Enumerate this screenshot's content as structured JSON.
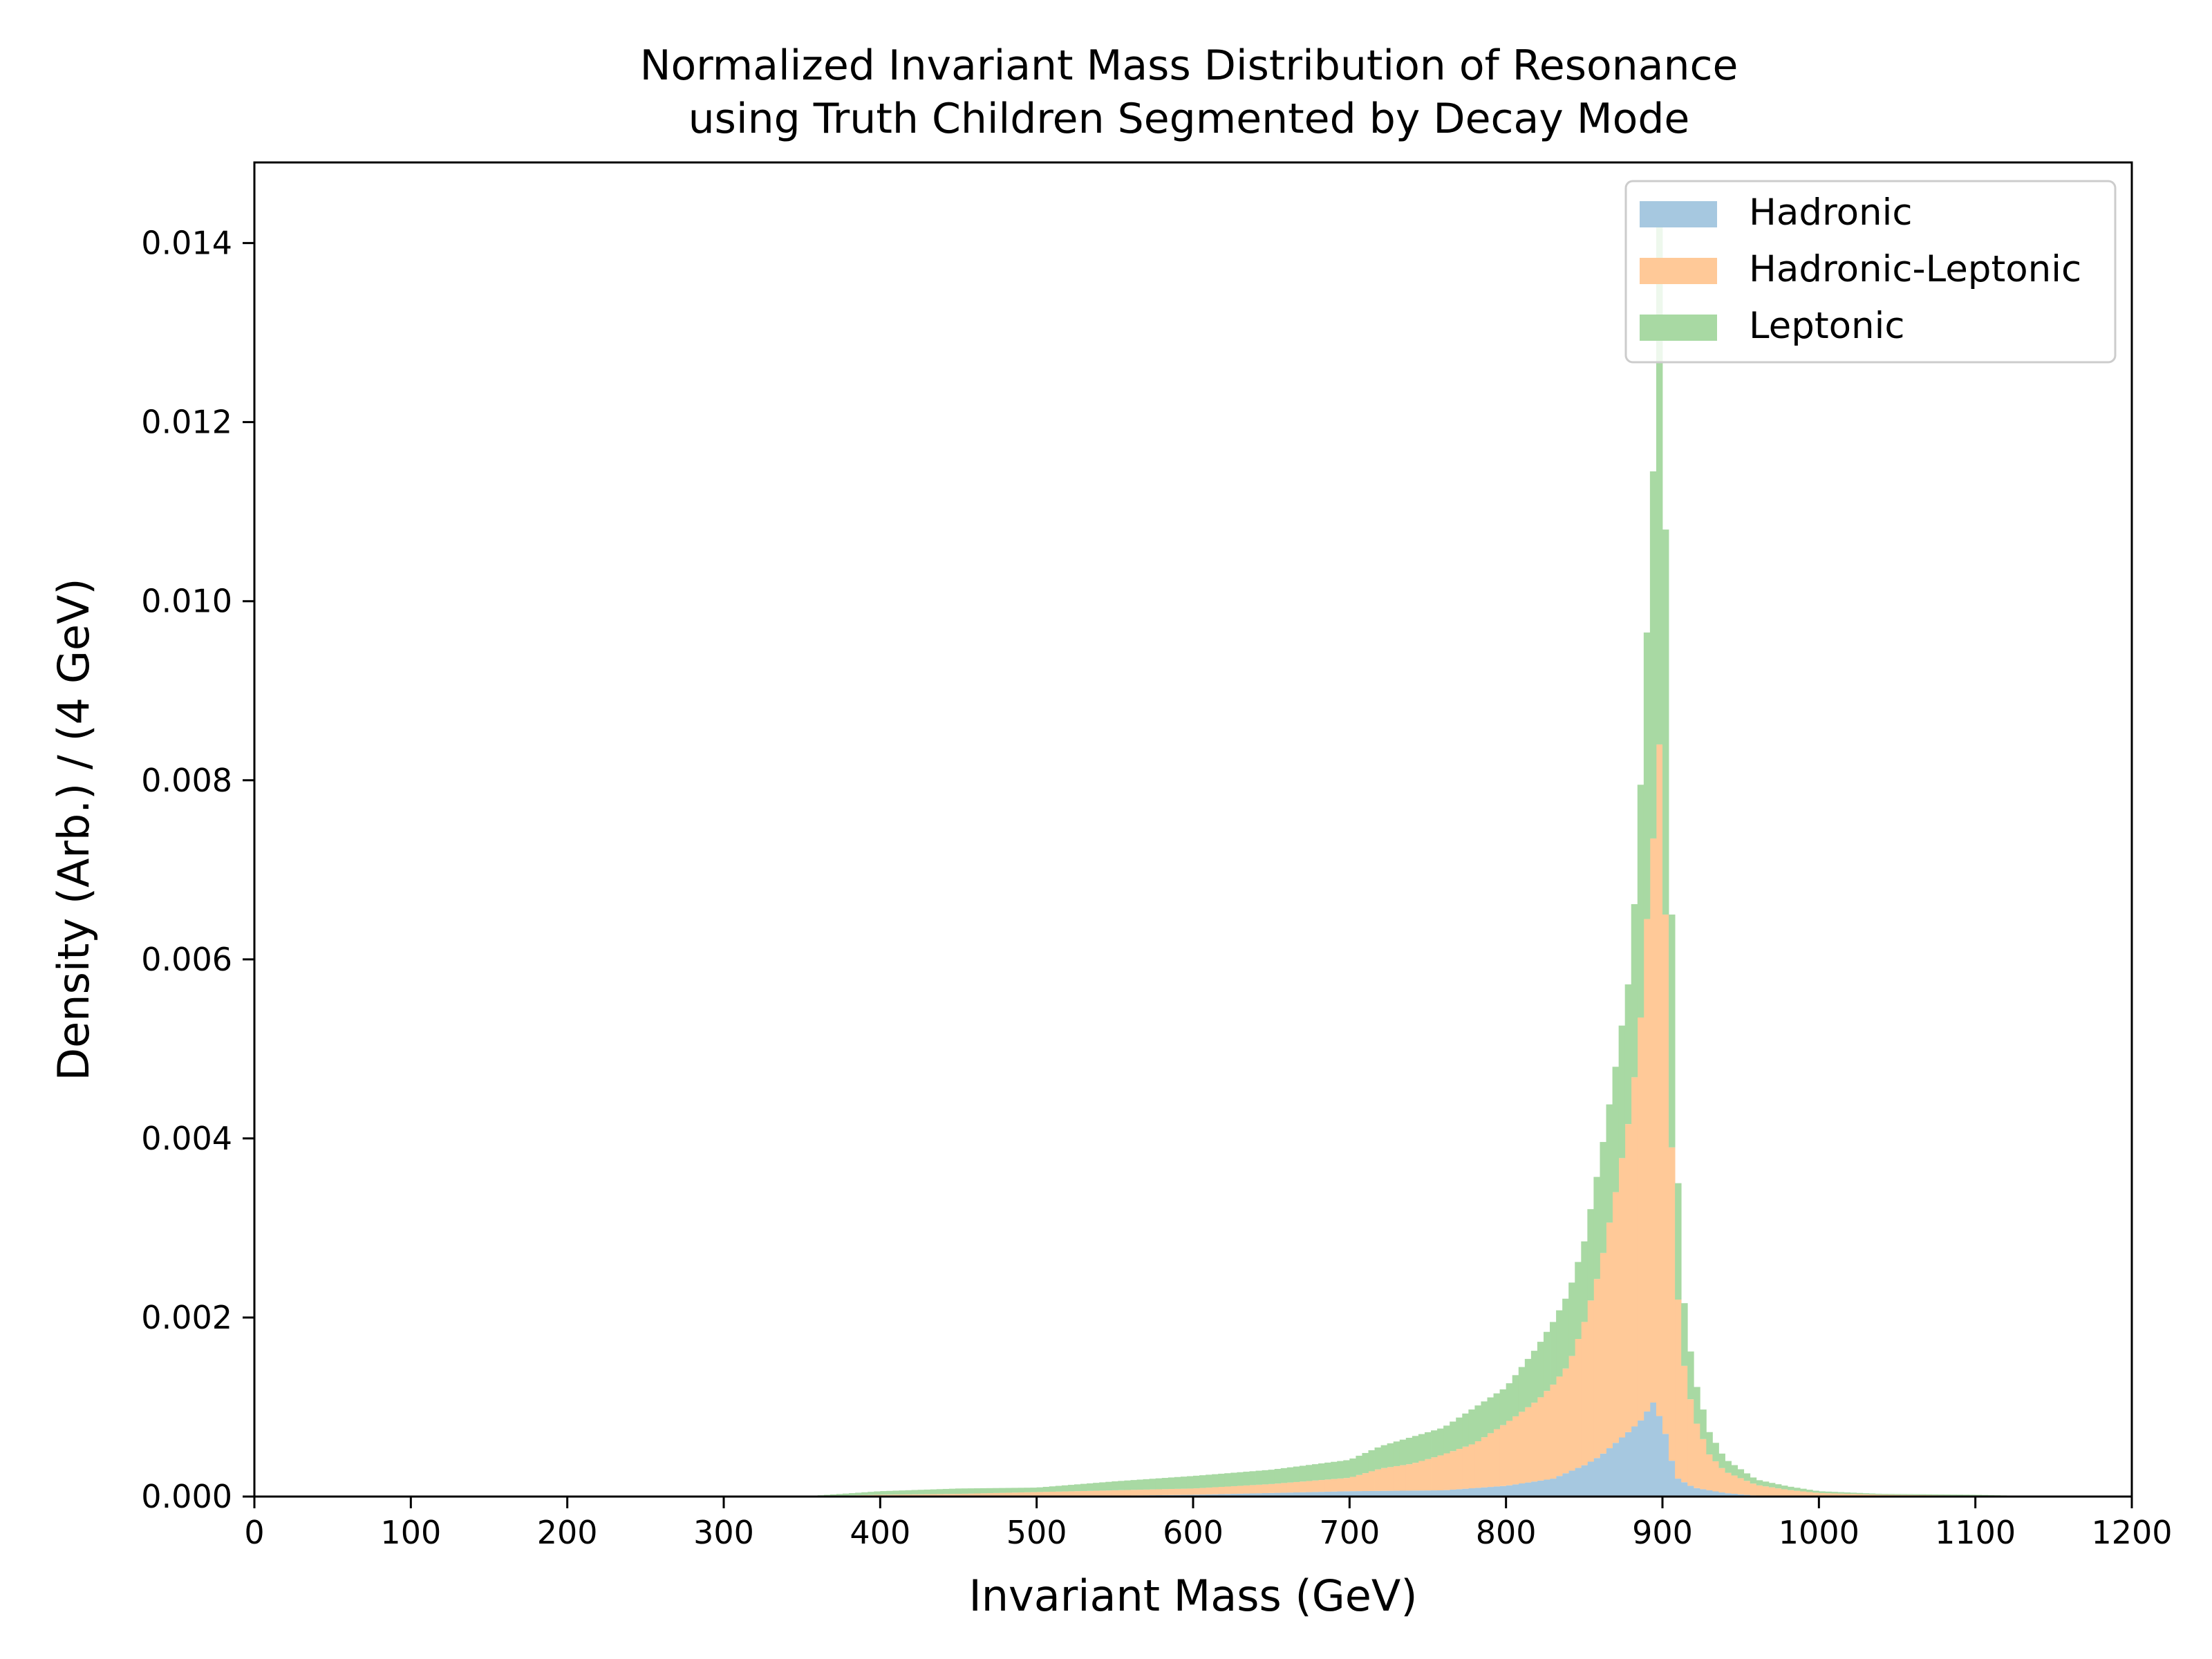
{
  "chart_data": {
    "type": "histogram-stacked",
    "title": [
      "Normalized Invariant Mass Distribution of Resonance",
      "using Truth Children Segmented by Decay Mode"
    ],
    "xlabel": "Invariant Mass (GeV)",
    "ylabel": "Density (Arb.) / (4 GeV)",
    "xlim": [
      0,
      1200
    ],
    "ylim": [
      0,
      0.0149
    ],
    "xticks": [
      0,
      100,
      200,
      300,
      400,
      500,
      600,
      700,
      800,
      900,
      1000,
      1100,
      1200
    ],
    "xtick_labels": [
      "0",
      "100",
      "200",
      "300",
      "400",
      "500",
      "600",
      "700",
      "800",
      "900",
      "1000",
      "1100",
      "1200"
    ],
    "yticks": [
      0,
      0.002,
      0.004,
      0.006,
      0.008,
      0.01,
      0.012,
      0.014
    ],
    "ytick_labels": [
      "0.000",
      "0.002",
      "0.004",
      "0.006",
      "0.008",
      "0.010",
      "0.012",
      "0.014"
    ],
    "bin_width": 4,
    "grid": false,
    "legend_position": "top-right",
    "series": [
      {
        "name": "Hadronic",
        "color": "#a6c8e0",
        "edge": "#6f9fc4",
        "x": [
          500,
          600,
          700,
          760,
          800,
          830,
          850,
          860,
          870,
          880,
          886,
          890,
          894,
          898,
          902,
          906,
          910,
          920,
          940,
          960,
          1000
        ],
        "y": [
          0.0,
          2e-05,
          6e-05,
          7e-05,
          0.00012,
          0.0002,
          0.00035,
          0.00045,
          0.0006,
          0.00075,
          0.00085,
          0.00095,
          0.00105,
          0.0009,
          0.0007,
          0.0004,
          0.0002,
          0.0001,
          4e-05,
          1e-05,
          0.0
        ]
      },
      {
        "name": "Hadronic-Leptonic",
        "color": "#ffc998",
        "edge": "#f0a060",
        "x": [
          350,
          400,
          450,
          500,
          550,
          600,
          650,
          700,
          720,
          740,
          760,
          780,
          800,
          820,
          840,
          850,
          860,
          870,
          880,
          886,
          890,
          894,
          898,
          902,
          906,
          910,
          914,
          920,
          930,
          940,
          960,
          980,
          1000,
          1040,
          1100,
          1150
        ],
        "y": [
          0.0,
          2e-05,
          3e-05,
          5e-05,
          6e-05,
          7e-05,
          0.0001,
          0.00015,
          0.00025,
          0.0003,
          0.0004,
          0.0005,
          0.0007,
          0.0009,
          0.0012,
          0.0016,
          0.0021,
          0.0028,
          0.0036,
          0.0045,
          0.0055,
          0.0063,
          0.0075,
          0.0058,
          0.0035,
          0.002,
          0.0013,
          0.0008,
          0.0004,
          0.00024,
          0.00012,
          7e-05,
          4e-05,
          2e-05,
          1e-05,
          0.0
        ]
      },
      {
        "name": "Leptonic",
        "color": "#a8d9a3",
        "edge": "#6fb86a",
        "x": [
          350,
          400,
          450,
          500,
          550,
          600,
          650,
          700,
          720,
          740,
          760,
          780,
          800,
          820,
          840,
          850,
          860,
          870,
          880,
          886,
          890,
          894,
          898,
          902,
          906,
          910,
          914,
          920,
          930,
          940,
          960,
          980,
          1000,
          1040,
          1100,
          1150
        ],
        "y": [
          0.0,
          4e-05,
          6e-05,
          5e-05,
          0.0001,
          0.00014,
          0.00016,
          0.0002,
          0.00025,
          0.0003,
          0.0003,
          0.0004,
          0.0004,
          0.0006,
          0.0008,
          0.0009,
          0.0012,
          0.0014,
          0.0016,
          0.0026,
          0.0032,
          0.0041,
          0.0058,
          0.0043,
          0.0026,
          0.0013,
          0.0007,
          0.00045,
          0.00025,
          0.00014,
          6e-05,
          4e-05,
          2e-05,
          1e-05,
          1e-05,
          0.0
        ]
      }
    ]
  }
}
